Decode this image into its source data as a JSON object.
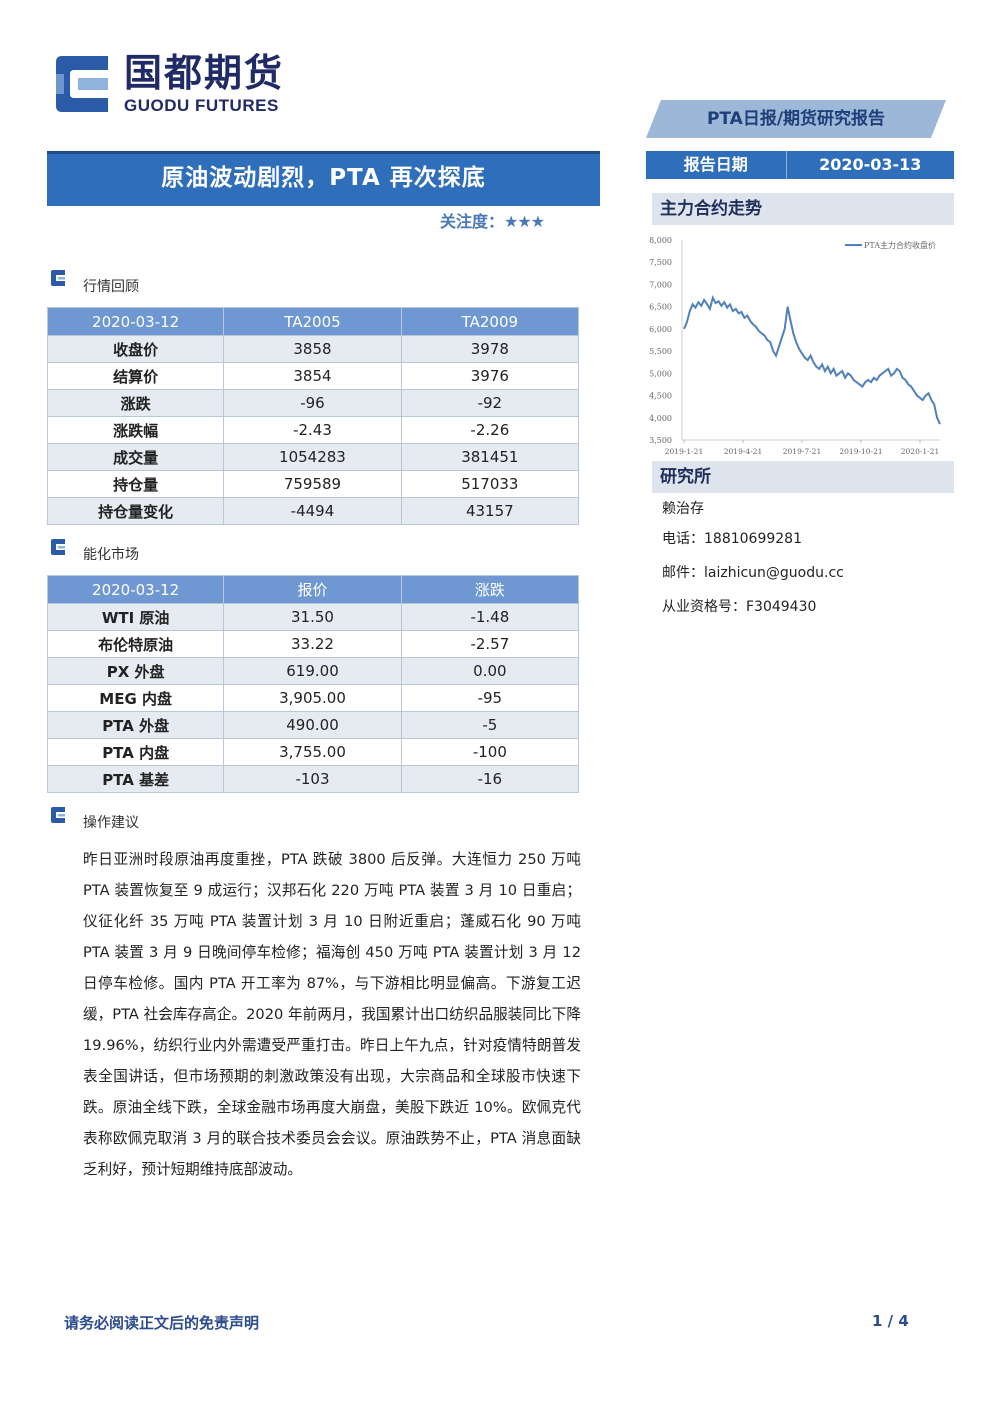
{
  "logo": {
    "cn": "国都期货",
    "en": "GUODU FUTURES"
  },
  "report_type": "PTA日报/期货研究报告",
  "title": "原油波动剧烈，PTA 再次探底",
  "attention": {
    "label": "关注度：",
    "stars": "★★★"
  },
  "report_date": {
    "label": "报告日期",
    "value": "2020-03-13"
  },
  "sections": {
    "market_review": "行情回顾",
    "energy_market": "能化市场",
    "operation": "操作建议"
  },
  "review_table": {
    "header": [
      "2020-03-12",
      "TA2005",
      "TA2009"
    ],
    "rows": [
      [
        "收盘价",
        "3858",
        "3978"
      ],
      [
        "结算价",
        "3854",
        "3976"
      ],
      [
        "涨跌",
        "-96",
        "-92"
      ],
      [
        "涨跌幅",
        "-2.43",
        "-2.26"
      ],
      [
        "成交量",
        "1054283",
        "381451"
      ],
      [
        "持仓量",
        "759589",
        "517033"
      ],
      [
        "持仓量变化",
        "-4494",
        "43157"
      ]
    ]
  },
  "energy_table": {
    "header": [
      "2020-03-12",
      "报价",
      "涨跌"
    ],
    "rows": [
      [
        "WTI 原油",
        "31.50",
        "-1.48"
      ],
      [
        "布伦特原油",
        "33.22",
        "-2.57"
      ],
      [
        "PX 外盘",
        "619.00",
        "0.00"
      ],
      [
        "MEG 内盘",
        "3,905.00",
        "-95"
      ],
      [
        "PTA 外盘",
        "490.00",
        "-5"
      ],
      [
        "PTA 内盘",
        "3,755.00",
        "-100"
      ],
      [
        "PTA 基差",
        "-103",
        "-16"
      ]
    ]
  },
  "operation_text": "昨日亚洲时段原油再度重挫，PTA 跌破 3800 后反弹。大连恒力 250 万吨 PTA 装置恢复至 9 成运行；汉邦石化 220 万吨 PTA 装置 3 月 10 日重启；仪征化纤 35 万吨 PTA 装置计划 3 月 10 日附近重启；蓬威石化 90 万吨 PTA 装置 3 月 9 日晚间停车检修；福海创 450 万吨 PTA 装置计划 3 月 12 日停车检修。国内 PTA 开工率为 87%，与下游相比明显偏高。下游复工迟缓，PTA 社会库存高企。2020 年前两月，我国累计出口纺织品服装同比下降 19.96%，纺织行业内外需遭受严重打击。昨日上午九点，针对疫情特朗普发表全国讲话，但市场预期的刺激政策没有出现，大宗商品和全球股市快速下跌。原油全线下跌，全球金融市场再度大崩盘，美股下跌近 10%。欧佩克代表称欧佩克取消 3 月的联合技术委员会会议。原油跌势不止，PTA 消息面缺乏利好，预计短期维持底部波动。",
  "side": {
    "chart_heading": "主力合约走势",
    "research_heading": "研究所",
    "analyst": "赖治存",
    "phone": "电话：18810699281",
    "email": "邮件：laizhicun@guodu.cc",
    "license": "从业资格号：F3049430"
  },
  "chart_data": {
    "type": "line",
    "series": [
      {
        "name": "PTA主力合约收盘价",
        "values": [
          6000,
          6150,
          6400,
          6550,
          6480,
          6600,
          6520,
          6650,
          6560,
          6450,
          6700,
          6580,
          6620,
          6520,
          6600,
          6480,
          6550,
          6400,
          6450,
          6350,
          6380,
          6250,
          6300,
          6180,
          6100,
          6050,
          5950,
          5900,
          5850,
          5750,
          5700,
          5500,
          5400,
          5600,
          5800,
          6000,
          6500,
          6200,
          5900,
          5700,
          5550,
          5450,
          5350,
          5300,
          5400,
          5250,
          5150,
          5100,
          5200,
          5050,
          5150,
          5000,
          5100,
          4950,
          5000,
          5050,
          4900,
          5000,
          4950,
          4850,
          4800,
          4750,
          4700,
          4800,
          4850,
          4800,
          4900,
          4850,
          4950,
          5000,
          5050,
          5100,
          4950,
          5000,
          5100,
          5050,
          4900,
          4850,
          4750,
          4700,
          4600,
          4500,
          4450,
          4400,
          4500,
          4550,
          4400,
          4300,
          4000,
          3858
        ]
      }
    ],
    "x_tick_labels": [
      "2019-1-21",
      "2019-4-21",
      "2019-7-21",
      "2019-10-21",
      "2020-1-21"
    ],
    "y_tick_labels": [
      "8,000",
      "7,500",
      "7,000",
      "6,500",
      "6,000",
      "5,500",
      "5,000",
      "4,500",
      "4,000",
      "3,500"
    ],
    "ylim": [
      3500,
      8000
    ],
    "legend": "top-right",
    "grid": false,
    "color": "#4f81bd"
  },
  "footer": {
    "disclaimer": "请务必阅读正文后的免责声明",
    "page": "1 / 4"
  }
}
